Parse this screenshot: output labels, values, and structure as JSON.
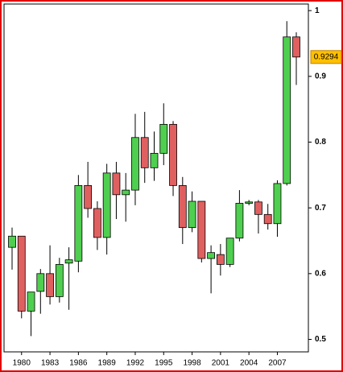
{
  "chart_data": {
    "type": "candlestick",
    "categories": [
      null,
      "1980",
      null,
      null,
      "1983",
      null,
      null,
      "1986",
      null,
      null,
      "1989",
      null,
      null,
      "1992",
      null,
      null,
      "1995",
      null,
      null,
      "1998",
      null,
      null,
      "2001",
      null,
      null,
      "2004",
      null,
      null,
      "2007",
      null,
      null
    ],
    "open": [
      0.64,
      0.657,
      0.543,
      0.573,
      0.6,
      0.565,
      0.616,
      0.619,
      0.734,
      0.699,
      0.655,
      0.753,
      0.72,
      0.727,
      0.807,
      0.761,
      0.783,
      0.827,
      0.734,
      0.67,
      0.71,
      0.623,
      0.629,
      0.614,
      0.654,
      0.707,
      0.709,
      0.69,
      0.676,
      0.737,
      0.96
    ],
    "high": [
      0.67,
      0.657,
      0.572,
      0.607,
      0.643,
      0.624,
      0.64,
      0.75,
      0.77,
      0.71,
      0.767,
      0.77,
      0.753,
      0.843,
      0.846,
      0.816,
      0.859,
      0.832,
      0.747,
      0.725,
      0.71,
      0.643,
      0.645,
      0.654,
      0.727,
      0.712,
      0.712,
      0.706,
      0.742,
      0.984,
      0.967
    ],
    "low": [
      0.606,
      0.532,
      0.505,
      0.539,
      0.553,
      0.556,
      0.545,
      0.602,
      0.685,
      0.636,
      0.629,
      0.683,
      0.679,
      0.704,
      0.738,
      0.741,
      0.765,
      0.718,
      0.645,
      0.663,
      0.617,
      0.57,
      0.597,
      0.61,
      0.649,
      0.704,
      0.661,
      0.667,
      0.656,
      0.734,
      0.887
    ],
    "close": [
      0.657,
      0.543,
      0.572,
      0.6,
      0.565,
      0.614,
      0.621,
      0.734,
      0.699,
      0.655,
      0.753,
      0.72,
      0.727,
      0.807,
      0.761,
      0.783,
      0.827,
      0.734,
      0.67,
      0.71,
      0.623,
      0.632,
      0.614,
      0.654,
      0.707,
      0.709,
      0.69,
      0.676,
      0.737,
      0.96,
      0.9294
    ],
    "up_color": "#4fcf4f",
    "down_color": "#e06060",
    "last_label_color": "#ffc000",
    "ylim": [
      0.481,
      1.01
    ],
    "yticks": [
      0.5,
      0.6,
      0.7,
      0.8,
      0.9,
      1
    ],
    "grid": false
  }
}
